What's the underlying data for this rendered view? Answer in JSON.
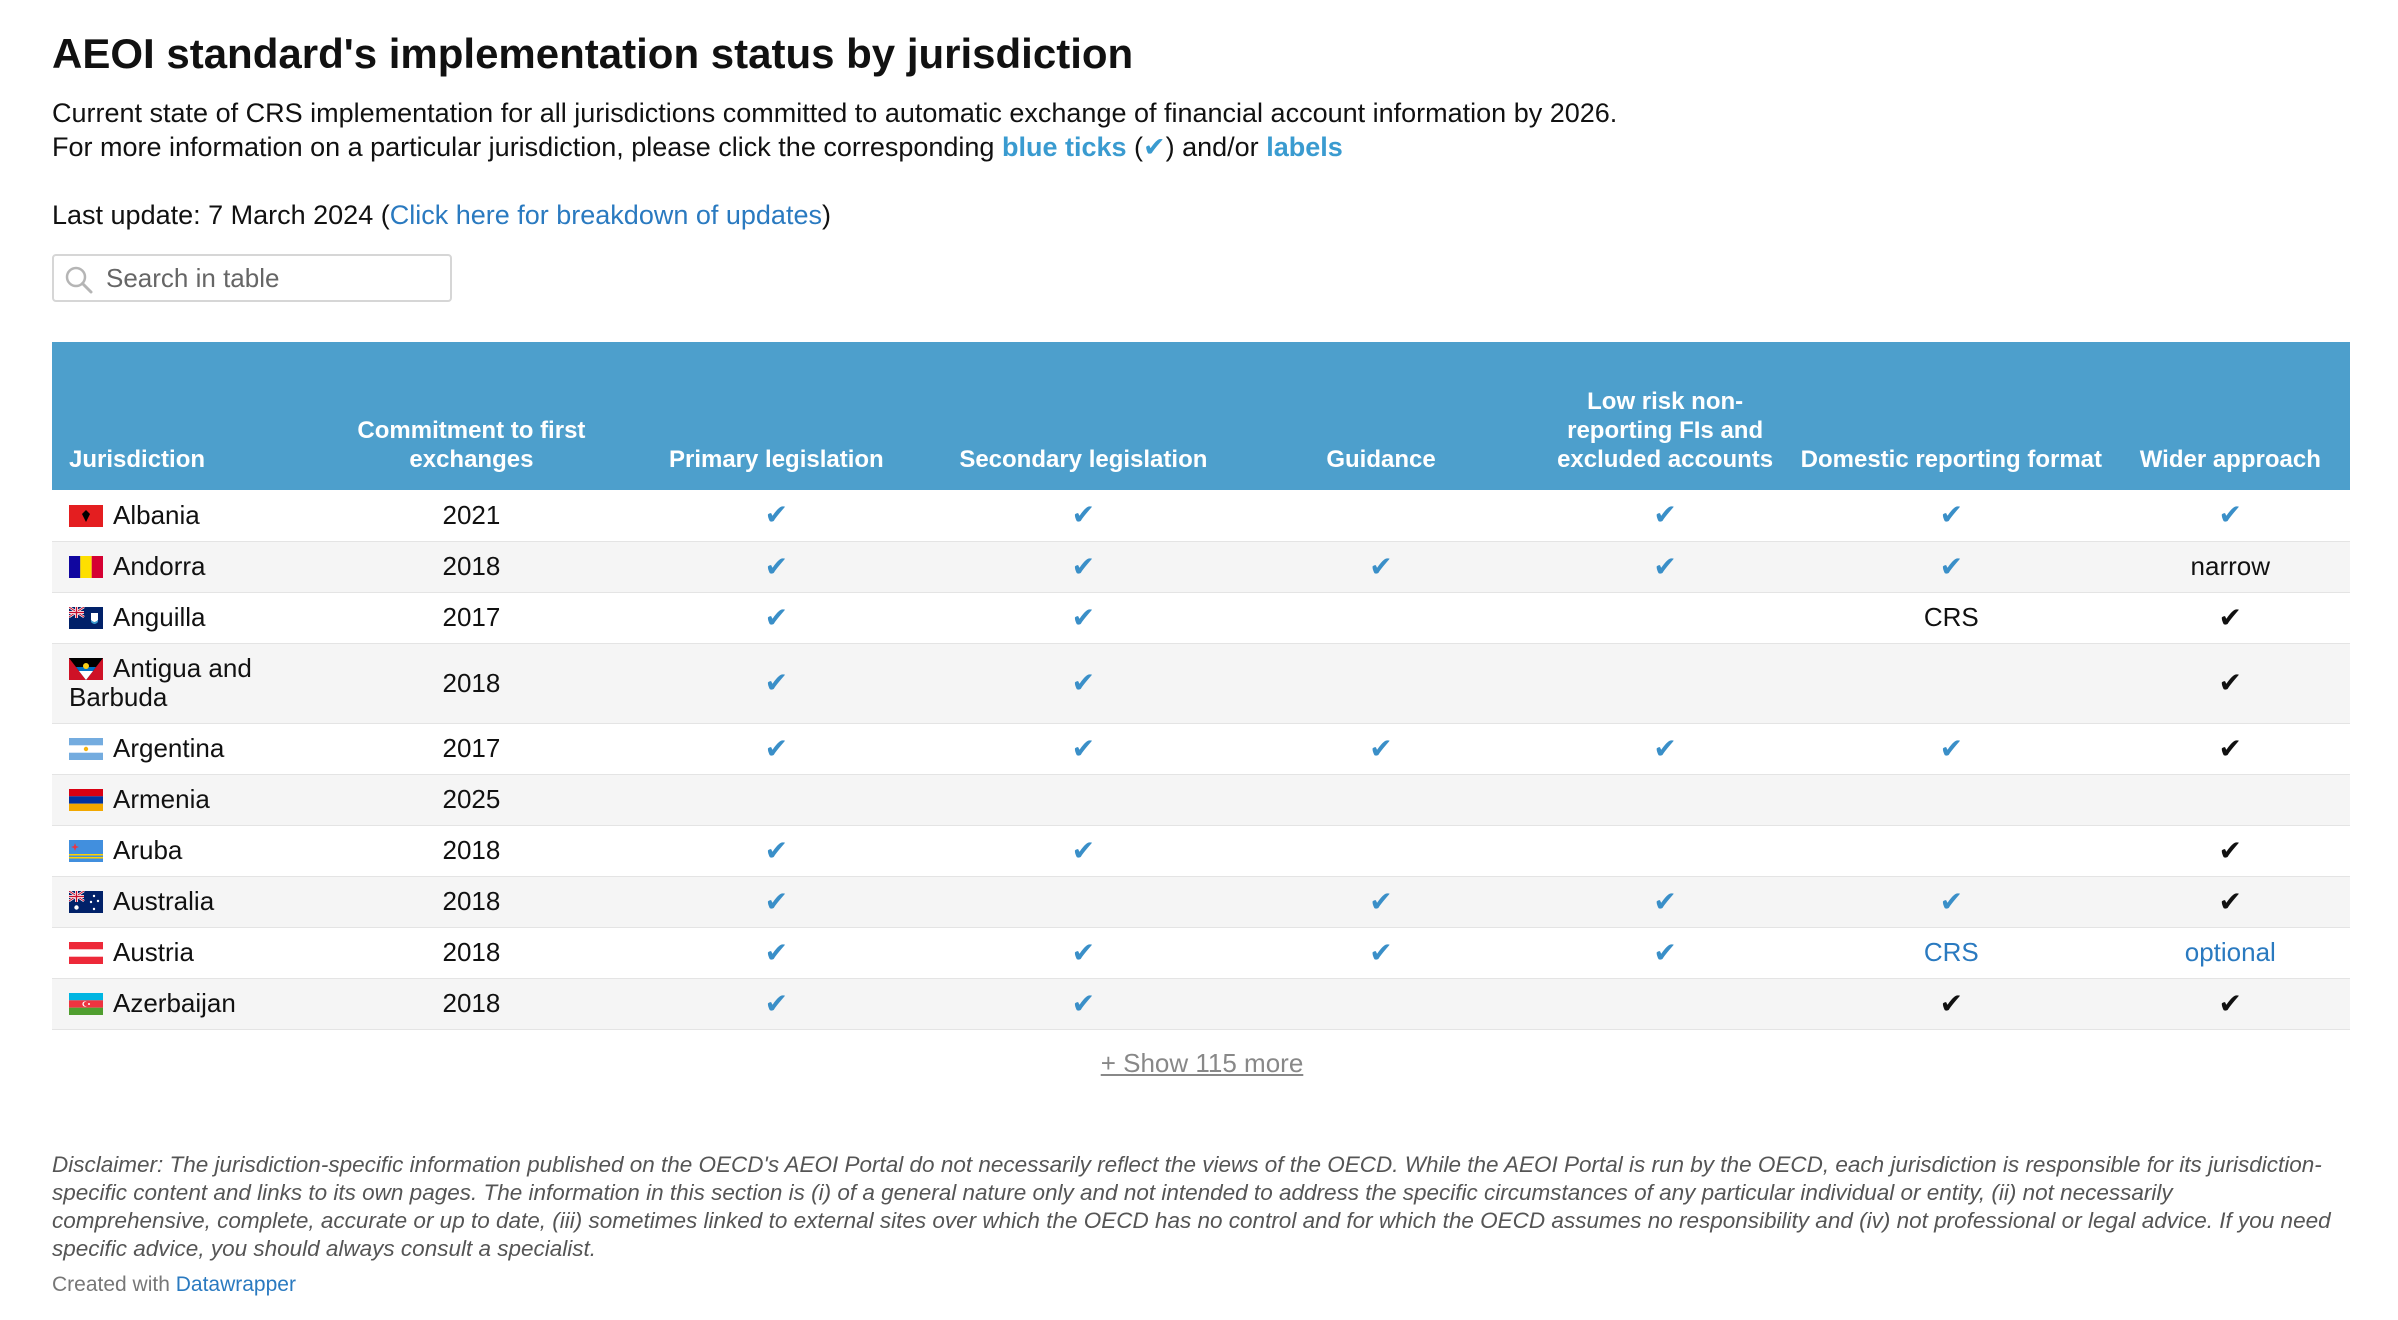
{
  "title": "AEOI standard's implementation status by jurisdiction",
  "description": {
    "line1": "Current state of CRS implementation for all jurisdictions committed to automatic exchange of financial account information by 2026.",
    "line2_prefix": "For more information on a particular jurisdiction, please click the corresponding ",
    "line2_blue_ticks": "blue ticks",
    "line2_paren_open": " (",
    "line2_tick": "✔",
    "line2_paren_close": ") and/or ",
    "line2_labels": "labels"
  },
  "last_update": {
    "prefix": "Last update: 7 March 2024 (",
    "link": "Click here for breakdown of updates",
    "suffix": ")"
  },
  "search": {
    "placeholder": "Search in table",
    "value": ""
  },
  "table": {
    "headers": [
      "Jurisdiction",
      "Commitment to first exchanges",
      "Primary legislation",
      "Secondary legislation",
      "Guidance",
      "Low risk non-reporting FIs and excluded accounts",
      "Domestic reporting format",
      "Wider approach"
    ],
    "rows": [
      {
        "name": "Albania",
        "flag": "albania",
        "year": "2021",
        "primary": "✔",
        "secondary": "✔",
        "guidance": "",
        "lowrisk": "✔",
        "domestic": "✔",
        "domestic_style": "bluetick",
        "wider": "✔",
        "wider_style": "bluetick"
      },
      {
        "name": "Andorra",
        "flag": "andorra",
        "year": "2018",
        "primary": "✔",
        "secondary": "✔",
        "guidance": "✔",
        "lowrisk": "✔",
        "domestic": "✔",
        "domestic_style": "bluetick",
        "wider": "narrow",
        "wider_style": "text"
      },
      {
        "name": "Anguilla",
        "flag": "anguilla",
        "year": "2017",
        "primary": "✔",
        "secondary": "✔",
        "guidance": "",
        "lowrisk": "",
        "domestic": "CRS",
        "domestic_style": "text",
        "wider": "✔",
        "wider_style": "blacktick"
      },
      {
        "name": "Antigua and Barbuda",
        "flag": "antigua",
        "year": "2018",
        "primary": "✔",
        "secondary": "✔",
        "guidance": "",
        "lowrisk": "",
        "domestic": "",
        "domestic_style": "text",
        "wider": "✔",
        "wider_style": "blacktick"
      },
      {
        "name": "Argentina",
        "flag": "argentina",
        "year": "2017",
        "primary": "✔",
        "secondary": "✔",
        "guidance": "✔",
        "lowrisk": "✔",
        "domestic": "✔",
        "domestic_style": "bluetick",
        "wider": "✔",
        "wider_style": "blacktick"
      },
      {
        "name": "Armenia",
        "flag": "armenia",
        "year": "2025",
        "primary": "",
        "secondary": "",
        "guidance": "",
        "lowrisk": "",
        "domestic": "",
        "domestic_style": "text",
        "wider": "",
        "wider_style": "text"
      },
      {
        "name": "Aruba",
        "flag": "aruba",
        "year": "2018",
        "primary": "✔",
        "secondary": "✔",
        "guidance": "",
        "lowrisk": "",
        "domestic": "",
        "domestic_style": "text",
        "wider": "✔",
        "wider_style": "blacktick"
      },
      {
        "name": "Australia",
        "flag": "australia",
        "year": "2018",
        "primary": "✔",
        "secondary": "",
        "guidance": "✔",
        "lowrisk": "✔",
        "domestic": "✔",
        "domestic_style": "bluetick",
        "wider": "✔",
        "wider_style": "blacktick"
      },
      {
        "name": "Austria",
        "flag": "austria",
        "year": "2018",
        "primary": "✔",
        "secondary": "✔",
        "guidance": "✔",
        "lowrisk": "✔",
        "domestic": "CRS",
        "domestic_style": "bluelink",
        "wider": "optional",
        "wider_style": "bluelink"
      },
      {
        "name": "Azerbaijan",
        "flag": "azerbaijan",
        "year": "2018",
        "primary": "✔",
        "secondary": "✔",
        "guidance": "",
        "lowrisk": "",
        "domestic": "✔",
        "domestic_style": "blacktick",
        "wider": "✔",
        "wider_style": "blacktick"
      }
    ]
  },
  "show_more": "+ Show 115 more",
  "disclaimer": "Disclaimer: The jurisdiction-specific information published on the OECD's AEOI Portal do not necessarily reflect the views of the OECD. While the AEOI Portal is run by the OECD, each jurisdiction is responsible for its jurisdiction-specific content and links to its own pages. The information in this section is (i) of a general nature only and not intended to address the specific circumstances of any particular individual or entity, (ii) not necessarily comprehensive, complete, accurate or up to date, (iii) sometimes linked to external sites over which the OECD has no control and for which the OECD assumes no responsibility and (iv) not professional or legal advice. If you need specific advice, you should always consult a specialist.",
  "credit": {
    "prefix": "Created with ",
    "link": "Datawrapper"
  },
  "colors": {
    "header_bg": "#4d9fcc",
    "blue_tick": "#3a8fc8",
    "link": "#2a7ac0"
  }
}
